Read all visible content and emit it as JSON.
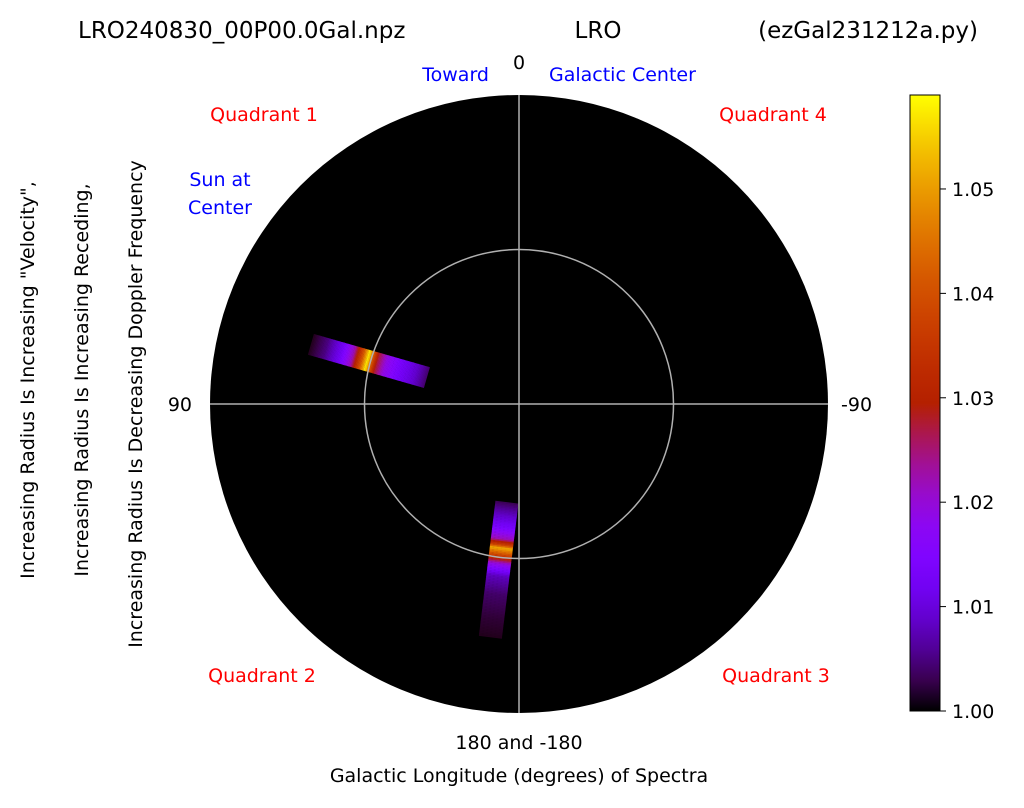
{
  "chart_data": {
    "type": "heatmap",
    "projection": "polar",
    "title": {
      "left": "LRO240830_00P00.0Gal.npz",
      "center": "LRO",
      "right": "(ezGal231212a.py)"
    },
    "xlabel": "Galactic Longitude (degrees) of Spectra",
    "ylabel_lines": [
      "Increasing Radius Is Increasing \"Velocity\",",
      "Increasing Radius Is Increasing Receding,",
      "Increasing Radius Is Decreasing Doppler Frequency"
    ],
    "angle_tick_labels": {
      "top": "0",
      "left": "90",
      "right": "-90",
      "bottom": "180 and -180"
    },
    "annotations": {
      "toward": "Toward",
      "galactic_center": "Galactic Center",
      "sun_line1": "Sun at",
      "sun_line2": "Center",
      "quadrant1": "Quadrant 1",
      "quadrant2": "Quadrant 2",
      "quadrant3": "Quadrant 3",
      "quadrant4": "Quadrant 4"
    },
    "grid": true,
    "radial_max": 1.0,
    "inner_circle_radius": 0.5,
    "colorbar": {
      "colormap": "gnuplot",
      "min": 1.0,
      "max": 1.059,
      "ticks": [
        "1.00",
        "1.01",
        "1.02",
        "1.03",
        "1.04",
        "1.05"
      ],
      "tick_values": [
        1.0,
        1.01,
        1.02,
        1.03,
        1.04,
        1.05
      ]
    },
    "strips": [
      {
        "longitude_deg": 74,
        "r_start": 0.31,
        "r_end": 0.7,
        "width": 0.07,
        "peak_r": 0.51,
        "peak_value": 1.058,
        "profile": [
          [
            0.31,
            1.004
          ],
          [
            0.35,
            1.009
          ],
          [
            0.4,
            1.013
          ],
          [
            0.45,
            1.019
          ],
          [
            0.48,
            1.028
          ],
          [
            0.5,
            1.045
          ],
          [
            0.51,
            1.058
          ],
          [
            0.53,
            1.04
          ],
          [
            0.56,
            1.022
          ],
          [
            0.6,
            1.012
          ],
          [
            0.65,
            1.005
          ],
          [
            0.7,
            1.001
          ]
        ]
      },
      {
        "longitude_deg": 173,
        "r_start": 0.32,
        "r_end": 0.76,
        "width": 0.075,
        "peak_r": 0.47,
        "peak_value": 1.052,
        "profile": [
          [
            0.32,
            1.003
          ],
          [
            0.36,
            1.008
          ],
          [
            0.4,
            1.013
          ],
          [
            0.44,
            1.022
          ],
          [
            0.46,
            1.038
          ],
          [
            0.47,
            1.052
          ],
          [
            0.49,
            1.04
          ],
          [
            0.52,
            1.02
          ],
          [
            0.56,
            1.008
          ],
          [
            0.62,
            1.004
          ],
          [
            0.7,
            1.002
          ],
          [
            0.76,
            1.001
          ]
        ]
      }
    ]
  }
}
